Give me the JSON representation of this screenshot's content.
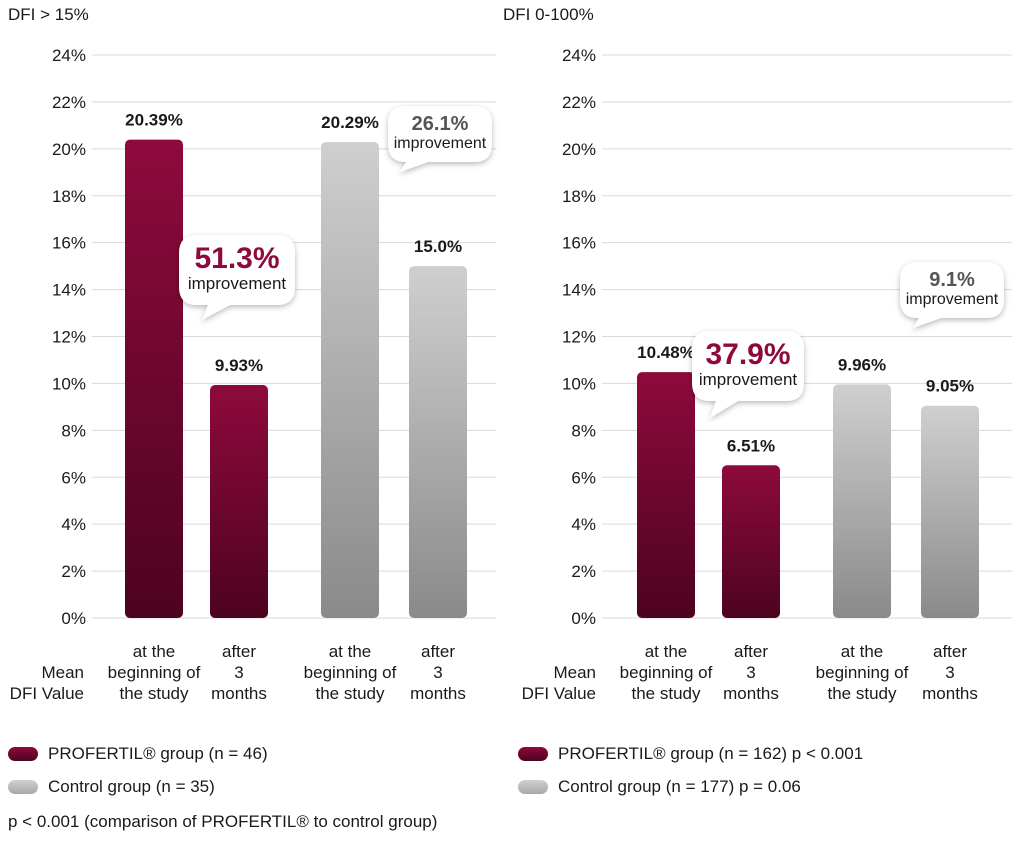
{
  "colors": {
    "profertil_top": "#8e0a3c",
    "profertil_bottom": "#4d0320",
    "control_top": "#cfcfcf",
    "control_bottom": "#8a8a8a",
    "improvement_profertil": "#8e0a3c",
    "improvement_control": "#555555",
    "grid": "#d9d9d9"
  },
  "chart_data": [
    {
      "type": "bar",
      "ylabel": "DFI > 15%",
      "ylim": [
        0,
        24
      ],
      "yticks": [
        "0%",
        "2%",
        "4%",
        "6%",
        "8%",
        "10%",
        "12%",
        "14%",
        "16%",
        "18%",
        "20%",
        "22%",
        "24%"
      ],
      "row_label": [
        "Mean",
        "DFI Value"
      ],
      "bars": [
        {
          "group": "PROFERTIL",
          "category": [
            "at the",
            "beginning of",
            "the study"
          ],
          "value": 20.39,
          "label": "20.39%"
        },
        {
          "group": "PROFERTIL",
          "category": [
            "after",
            "3",
            "months"
          ],
          "value": 9.93,
          "label": "9.93%"
        },
        {
          "group": "Control",
          "category": [
            "at the",
            "beginning of",
            "the study"
          ],
          "value": 20.29,
          "label": "20.29%"
        },
        {
          "group": "Control",
          "category": [
            "after",
            "3",
            "months"
          ],
          "value": 15.0,
          "label": "15.0%"
        }
      ],
      "annotations": [
        {
          "value": "51.3%",
          "text": "improvement",
          "group": "PROFERTIL"
        },
        {
          "value": "26.1%",
          "text": "improvement",
          "group": "Control"
        }
      ],
      "legend": [
        {
          "label": "PROFERTIL® group (n = 46)",
          "group": "PROFERTIL"
        },
        {
          "label": "Control group (n = 35)",
          "group": "Control"
        }
      ],
      "note": "p < 0.001 (comparison of PROFERTIL® to control group)"
    },
    {
      "type": "bar",
      "ylabel": "DFI 0-100%",
      "ylim": [
        0,
        24
      ],
      "yticks": [
        "0%",
        "2%",
        "4%",
        "6%",
        "8%",
        "10%",
        "12%",
        "14%",
        "16%",
        "18%",
        "20%",
        "22%",
        "24%"
      ],
      "row_label": [
        "Mean",
        "DFI Value"
      ],
      "bars": [
        {
          "group": "PROFERTIL",
          "category": [
            "at the",
            "beginning of",
            "the study"
          ],
          "value": 10.48,
          "label": "10.48%"
        },
        {
          "group": "PROFERTIL",
          "category": [
            "after",
            "3",
            "months"
          ],
          "value": 6.51,
          "label": "6.51%"
        },
        {
          "group": "Control",
          "category": [
            "at the",
            "beginning of",
            "the study"
          ],
          "value": 9.96,
          "label": "9.96%"
        },
        {
          "group": "Control",
          "category": [
            "after",
            "3",
            "months"
          ],
          "value": 9.05,
          "label": "9.05%"
        }
      ],
      "annotations": [
        {
          "value": "37.9%",
          "text": "improvement",
          "group": "PROFERTIL"
        },
        {
          "value": "9.1%",
          "text": "improvement",
          "group": "Control"
        }
      ],
      "legend": [
        {
          "label": "PROFERTIL® group (n = 162) p < 0.001",
          "group": "PROFERTIL"
        },
        {
          "label": "Control group (n = 177) p = 0.06",
          "group": "Control"
        }
      ]
    }
  ]
}
